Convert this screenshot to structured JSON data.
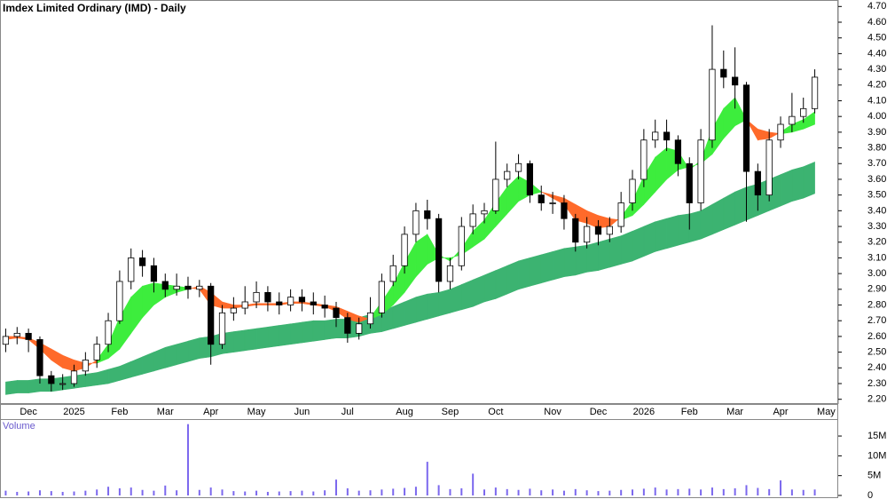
{
  "chart_data": {
    "type": "candlestick",
    "title": "Imdex Limited Ordinary (IMD) - Daily",
    "categories": [
      null,
      null,
      "Dec",
      null,
      null,
      null,
      "2025",
      null,
      null,
      null,
      "Feb",
      null,
      null,
      null,
      "Mar",
      null,
      null,
      null,
      "Apr",
      null,
      null,
      null,
      "May",
      null,
      null,
      null,
      "Jun",
      null,
      null,
      null,
      "Jul",
      null,
      null,
      null,
      null,
      "Aug",
      null,
      null,
      null,
      "Sep",
      null,
      null,
      null,
      "Oct",
      null,
      null,
      null,
      null,
      "Nov",
      null,
      null,
      null,
      "Dec",
      null,
      null,
      null,
      "2026",
      null,
      null,
      null,
      "Feb",
      null,
      null,
      null,
      "Mar",
      null,
      null,
      null,
      "Apr",
      null,
      null,
      null,
      "May"
    ],
    "ohlc": [
      [
        2.55,
        2.65,
        2.5,
        2.6
      ],
      [
        2.6,
        2.66,
        2.55,
        2.62
      ],
      [
        2.62,
        2.65,
        2.5,
        2.58
      ],
      [
        2.58,
        2.6,
        2.3,
        2.35
      ],
      [
        2.35,
        2.38,
        2.25,
        2.3
      ],
      [
        2.3,
        2.36,
        2.26,
        2.3
      ],
      [
        2.3,
        2.42,
        2.28,
        2.38
      ],
      [
        2.38,
        2.5,
        2.35,
        2.45
      ],
      [
        2.45,
        2.6,
        2.4,
        2.55
      ],
      [
        2.55,
        2.75,
        2.5,
        2.7
      ],
      [
        2.7,
        3.02,
        2.68,
        2.95
      ],
      [
        2.95,
        3.16,
        2.9,
        3.1
      ],
      [
        3.1,
        3.15,
        2.98,
        3.05
      ],
      [
        3.05,
        3.1,
        2.88,
        2.95
      ],
      [
        2.95,
        3.0,
        2.85,
        2.9
      ],
      [
        2.9,
        3.0,
        2.86,
        2.92
      ],
      [
        2.92,
        2.98,
        2.84,
        2.9
      ],
      [
        2.9,
        2.96,
        2.85,
        2.92
      ],
      [
        2.92,
        2.94,
        2.42,
        2.55
      ],
      [
        2.55,
        2.8,
        2.52,
        2.75
      ],
      [
        2.75,
        2.85,
        2.7,
        2.78
      ],
      [
        2.78,
        2.92,
        2.74,
        2.82
      ],
      [
        2.82,
        2.95,
        2.78,
        2.88
      ],
      [
        2.88,
        2.92,
        2.76,
        2.82
      ],
      [
        2.82,
        2.88,
        2.74,
        2.8
      ],
      [
        2.8,
        2.9,
        2.76,
        2.85
      ],
      [
        2.85,
        2.9,
        2.76,
        2.82
      ],
      [
        2.82,
        2.88,
        2.74,
        2.8
      ],
      [
        2.8,
        2.86,
        2.72,
        2.78
      ],
      [
        2.78,
        2.82,
        2.66,
        2.72
      ],
      [
        2.72,
        2.75,
        2.56,
        2.62
      ],
      [
        2.62,
        2.72,
        2.58,
        2.68
      ],
      [
        2.68,
        2.85,
        2.65,
        2.75
      ],
      [
        2.75,
        3.0,
        2.72,
        2.95
      ],
      [
        2.95,
        3.12,
        2.92,
        3.05
      ],
      [
        3.05,
        3.3,
        3.0,
        3.25
      ],
      [
        3.25,
        3.45,
        3.2,
        3.4
      ],
      [
        3.4,
        3.47,
        3.28,
        3.35
      ],
      [
        3.35,
        3.38,
        2.88,
        2.95
      ],
      [
        2.95,
        3.1,
        2.9,
        3.05
      ],
      [
        3.05,
        3.36,
        3.02,
        3.3
      ],
      [
        3.3,
        3.44,
        3.25,
        3.38
      ],
      [
        3.38,
        3.45,
        3.32,
        3.4
      ],
      [
        3.4,
        3.84,
        3.38,
        3.6
      ],
      [
        3.6,
        3.7,
        3.55,
        3.65
      ],
      [
        3.65,
        3.76,
        3.6,
        3.7
      ],
      [
        3.7,
        3.72,
        3.45,
        3.5
      ],
      [
        3.5,
        3.56,
        3.4,
        3.45
      ],
      [
        3.45,
        3.52,
        3.38,
        3.45
      ],
      [
        3.45,
        3.5,
        3.28,
        3.35
      ],
      [
        3.35,
        3.38,
        3.14,
        3.2
      ],
      [
        3.2,
        3.36,
        3.16,
        3.3
      ],
      [
        3.3,
        3.34,
        3.18,
        3.25
      ],
      [
        3.25,
        3.36,
        3.2,
        3.3
      ],
      [
        3.3,
        3.52,
        3.26,
        3.45
      ],
      [
        3.45,
        3.66,
        3.4,
        3.6
      ],
      [
        3.6,
        3.92,
        3.55,
        3.85
      ],
      [
        3.85,
        3.98,
        3.8,
        3.9
      ],
      [
        3.9,
        3.98,
        3.78,
        3.85
      ],
      [
        3.85,
        3.88,
        3.62,
        3.7
      ],
      [
        3.7,
        3.74,
        3.28,
        3.45
      ],
      [
        3.45,
        3.92,
        3.4,
        3.85
      ],
      [
        3.85,
        4.58,
        3.8,
        4.3
      ],
      [
        4.3,
        4.42,
        4.18,
        4.25
      ],
      [
        4.25,
        4.44,
        4.05,
        4.2
      ],
      [
        4.2,
        4.22,
        3.33,
        3.65
      ],
      [
        3.65,
        3.7,
        3.4,
        3.5
      ],
      [
        3.5,
        3.92,
        3.46,
        3.85
      ],
      [
        3.85,
        4.0,
        3.8,
        3.95
      ],
      [
        3.95,
        4.15,
        3.9,
        4.0
      ],
      [
        4.0,
        4.12,
        3.96,
        4.05
      ],
      [
        4.05,
        4.3,
        4.02,
        4.25
      ],
      null
    ],
    "bands": [
      {
        "colors": [
          "#3ded3d",
          "#ff6a2a"
        ],
        "fast": [
          2.58,
          2.59,
          2.58,
          2.52,
          2.45,
          2.4,
          2.38,
          2.4,
          2.45,
          2.55,
          2.72,
          2.85,
          2.92,
          2.94,
          2.93,
          2.92,
          2.91,
          2.9,
          2.8,
          2.78,
          2.78,
          2.79,
          2.8,
          2.8,
          2.8,
          2.81,
          2.81,
          2.8,
          2.79,
          2.76,
          2.71,
          2.69,
          2.72,
          2.82,
          2.93,
          3.07,
          3.2,
          3.25,
          3.12,
          3.08,
          3.16,
          3.27,
          3.34,
          3.45,
          3.55,
          3.62,
          3.58,
          3.52,
          3.48,
          3.44,
          3.34,
          3.32,
          3.29,
          3.3,
          3.36,
          3.46,
          3.62,
          3.74,
          3.8,
          3.78,
          3.66,
          3.72,
          3.92,
          4.05,
          4.12,
          3.98,
          3.85,
          3.86,
          3.9,
          3.95,
          3.98,
          4.03,
          null
        ],
        "slow": [
          2.6,
          2.6,
          2.59,
          2.56,
          2.52,
          2.48,
          2.45,
          2.43,
          2.43,
          2.46,
          2.52,
          2.62,
          2.72,
          2.8,
          2.85,
          2.88,
          2.9,
          2.92,
          2.88,
          2.82,
          2.8,
          2.8,
          2.81,
          2.81,
          2.81,
          2.82,
          2.82,
          2.81,
          2.8,
          2.79,
          2.76,
          2.73,
          2.71,
          2.74,
          2.8,
          2.88,
          2.98,
          3.06,
          3.1,
          3.1,
          3.12,
          3.17,
          3.22,
          3.3,
          3.38,
          3.46,
          3.5,
          3.52,
          3.5,
          3.48,
          3.44,
          3.4,
          3.37,
          3.35,
          3.34,
          3.37,
          3.44,
          3.52,
          3.6,
          3.66,
          3.68,
          3.7,
          3.76,
          3.86,
          3.94,
          3.98,
          3.92,
          3.9,
          3.89,
          3.9,
          3.92,
          3.95,
          null
        ]
      },
      {
        "colors": [
          "#3cb371",
          "#ff6a2a"
        ],
        "fast": [
          2.31,
          2.32,
          2.32,
          2.33,
          2.33,
          2.34,
          2.35,
          2.36,
          2.37,
          2.39,
          2.41,
          2.44,
          2.47,
          2.5,
          2.53,
          2.55,
          2.57,
          2.59,
          2.6,
          2.62,
          2.63,
          2.64,
          2.65,
          2.66,
          2.67,
          2.68,
          2.69,
          2.7,
          2.7,
          2.71,
          2.71,
          2.72,
          2.74,
          2.76,
          2.79,
          2.82,
          2.85,
          2.87,
          2.88,
          2.9,
          2.93,
          2.96,
          2.99,
          3.02,
          3.05,
          3.08,
          3.1,
          3.12,
          3.14,
          3.16,
          3.17,
          3.18,
          3.2,
          3.22,
          3.24,
          3.27,
          3.3,
          3.33,
          3.35,
          3.37,
          3.38,
          3.4,
          3.44,
          3.48,
          3.52,
          3.55,
          3.57,
          3.6,
          3.63,
          3.66,
          3.68,
          3.71,
          null
        ],
        "slow": [
          2.23,
          2.24,
          2.24,
          2.25,
          2.25,
          2.26,
          2.27,
          2.28,
          2.29,
          2.3,
          2.32,
          2.34,
          2.36,
          2.38,
          2.4,
          2.42,
          2.44,
          2.46,
          2.47,
          2.49,
          2.5,
          2.51,
          2.52,
          2.53,
          2.54,
          2.55,
          2.56,
          2.57,
          2.58,
          2.59,
          2.59,
          2.6,
          2.62,
          2.63,
          2.65,
          2.67,
          2.69,
          2.71,
          2.73,
          2.75,
          2.77,
          2.79,
          2.82,
          2.84,
          2.87,
          2.9,
          2.92,
          2.94,
          2.96,
          2.98,
          2.99,
          3.01,
          3.02,
          3.04,
          3.06,
          3.08,
          3.11,
          3.14,
          3.16,
          3.18,
          3.2,
          3.22,
          3.25,
          3.28,
          3.31,
          3.34,
          3.37,
          3.4,
          3.43,
          3.46,
          3.48,
          3.51,
          null
        ]
      }
    ],
    "ylim": [
      2.17,
      4.73
    ],
    "yticks": [
      {
        "value": 2.2,
        "label": "2.20"
      },
      {
        "value": 2.3,
        "label": "2.30"
      },
      {
        "value": 2.4,
        "label": "2.40"
      },
      {
        "value": 2.5,
        "label": "2.50"
      },
      {
        "value": 2.6,
        "label": "2.60"
      },
      {
        "value": 2.7,
        "label": "2.70"
      },
      {
        "value": 2.8,
        "label": "2.80"
      },
      {
        "value": 2.9,
        "label": "2.90"
      },
      {
        "value": 3.0,
        "label": "3.00"
      },
      {
        "value": 3.1,
        "label": "3.10"
      },
      {
        "value": 3.2,
        "label": "3.20"
      },
      {
        "value": 3.3,
        "label": "3.30"
      },
      {
        "value": 3.4,
        "label": "3.40"
      },
      {
        "value": 3.5,
        "label": "3.50"
      },
      {
        "value": 3.6,
        "label": "3.60"
      },
      {
        "value": 3.7,
        "label": "3.70"
      },
      {
        "value": 3.8,
        "label": "3.80"
      },
      {
        "value": 3.9,
        "label": "3.90"
      },
      {
        "value": 4.0,
        "label": "4.00"
      },
      {
        "value": 4.1,
        "label": "4.10"
      },
      {
        "value": 4.2,
        "label": "4.20"
      },
      {
        "value": 4.3,
        "label": "4.30"
      },
      {
        "value": 4.4,
        "label": "4.40"
      },
      {
        "value": 4.5,
        "label": "4.50"
      },
      {
        "value": 4.6,
        "label": "4.60"
      },
      {
        "value": 4.7,
        "label": "4.70"
      }
    ],
    "volume": {
      "type": "bar",
      "title": "Volume",
      "color": "#7b68ee",
      "values": [
        1200000,
        900000,
        1000000,
        1300000,
        1100000,
        900000,
        1000000,
        1200000,
        1500000,
        2200000,
        1800000,
        2000000,
        1400000,
        1200000,
        2500000,
        1300000,
        18000000,
        1400000,
        2000000,
        1500000,
        1100000,
        1000000,
        1200000,
        900000,
        1000000,
        1100000,
        1200000,
        1000000,
        1300000,
        4000000,
        1800000,
        1200000,
        1300000,
        1500000,
        1700000,
        1900000,
        2200000,
        8500000,
        2600000,
        1600000,
        1800000,
        5500000,
        1500000,
        2000000,
        1600000,
        1400000,
        1700000,
        1300000,
        1500000,
        1200000,
        1600000,
        1300000,
        1100000,
        1200000,
        1400000,
        1500000,
        1700000,
        2000000,
        1500000,
        1600000,
        1700000,
        1500000,
        2000000,
        1600000,
        1800000,
        2600000,
        1900000,
        1600000,
        3800000,
        1500000,
        1400000,
        1500000,
        null
      ],
      "ylim": [
        0,
        18600000
      ],
      "yticks": [
        0,
        {
          "value": 5000000,
          "label": "5M"
        },
        {
          "value": 10000000,
          "label": "10M"
        },
        {
          "value": 15000000,
          "label": "15M"
        }
      ]
    }
  }
}
